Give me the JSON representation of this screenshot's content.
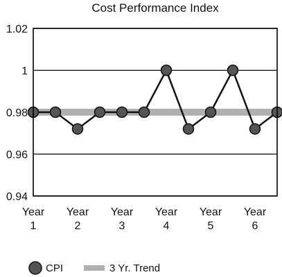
{
  "chart_data": {
    "type": "line",
    "title": "Cost Performance Index",
    "xlabel": "",
    "ylabel": "",
    "ylim": [
      0.94,
      1.02
    ],
    "yticks": [
      "1.02",
      "1",
      "0.98",
      "0.96",
      "0.94"
    ],
    "grid": "horizontal",
    "legend": "bottom",
    "year_labels": [
      {
        "top": "Year",
        "bottom": "1"
      },
      {
        "top": "Year",
        "bottom": "2"
      },
      {
        "top": "Year",
        "bottom": "3"
      },
      {
        "top": "Year",
        "bottom": "4"
      },
      {
        "top": "Year",
        "bottom": "5"
      },
      {
        "top": "Year",
        "bottom": "6"
      }
    ],
    "series": [
      {
        "name": "CPI",
        "values": [
          0.98,
          0.98,
          0.972,
          0.98,
          0.98,
          0.98,
          1.0,
          0.972,
          0.98,
          1.0,
          0.972,
          0.98
        ],
        "color": "#555555"
      },
      {
        "name": "3 Yr. Trend",
        "values": [
          0.98,
          0.98
        ],
        "color": "#b0b0b0"
      }
    ]
  }
}
